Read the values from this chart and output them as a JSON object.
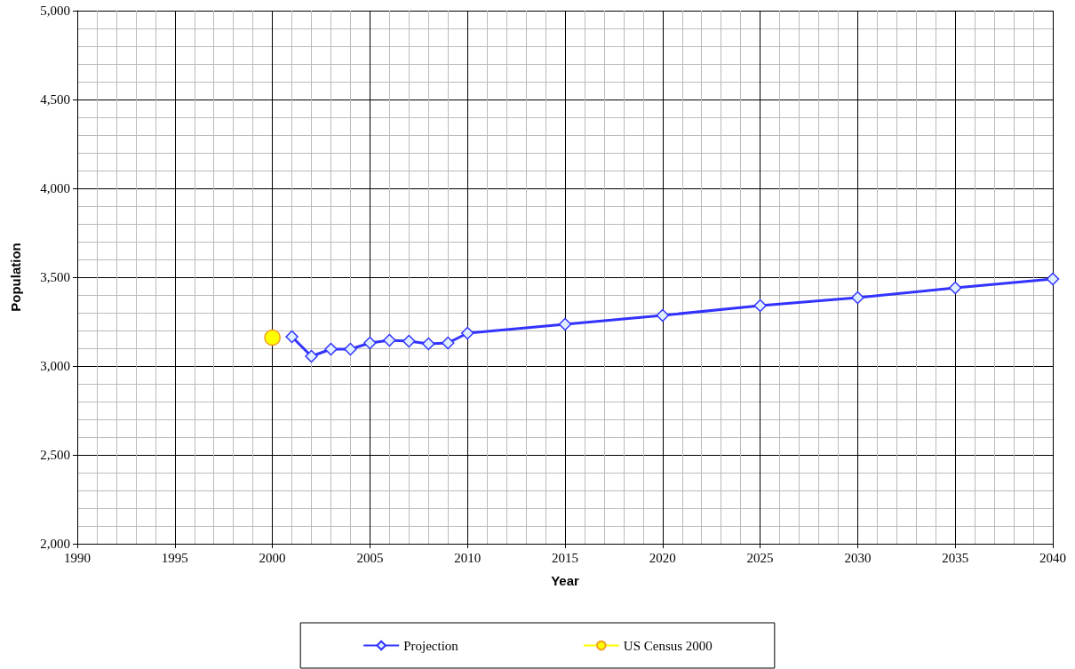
{
  "chart_data": {
    "type": "line",
    "xlabel": "Year",
    "ylabel": "Population",
    "xlim": [
      1990,
      2040
    ],
    "xticks": [
      1990,
      1995,
      2000,
      2005,
      2010,
      2015,
      2020,
      2025,
      2030,
      2035,
      2040
    ],
    "ylim": [
      2000,
      5000
    ],
    "yticks": [
      {
        "value": 2000,
        "label": "2,000"
      },
      {
        "value": 2500,
        "label": "2,500"
      },
      {
        "value": 3000,
        "label": "3,000"
      },
      {
        "value": 3500,
        "label": "3,500"
      },
      {
        "value": 4000,
        "label": "4,000"
      },
      {
        "value": 4500,
        "label": "4,500"
      },
      {
        "value": 5000,
        "label": "5,000"
      }
    ],
    "grid": true,
    "legend": "bottom",
    "series": [
      {
        "name": "Projection",
        "color": "#3333ff",
        "marker": "diamond",
        "x": [
          2001,
          2002,
          2003,
          2004,
          2005,
          2006,
          2007,
          2008,
          2009,
          2010,
          2015,
          2020,
          2025,
          2030,
          2035,
          2040
        ],
        "values": [
          3165,
          3055,
          3095,
          3095,
          3130,
          3145,
          3140,
          3125,
          3130,
          3185,
          3235,
          3285,
          3340,
          3385,
          3440,
          3490
        ]
      },
      {
        "name": "US Census 2000",
        "color": "#ffff00",
        "marker": "circle",
        "x": [
          2000
        ],
        "values": [
          3160
        ]
      }
    ]
  }
}
